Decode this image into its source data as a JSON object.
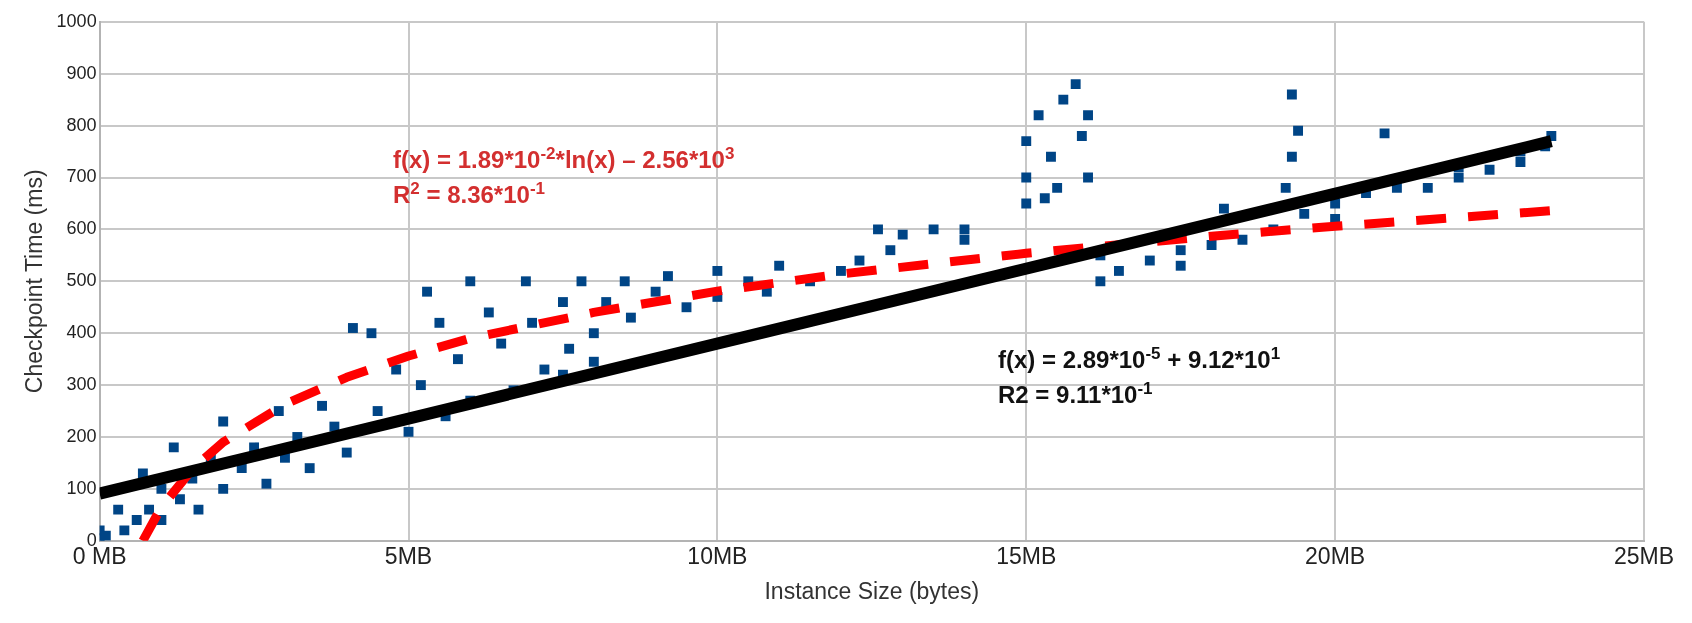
{
  "chart_data": {
    "type": "scatter",
    "xlabel": "Instance Size (bytes)",
    "ylabel": "Checkpoint Time (ms)",
    "xlim": [
      0,
      25
    ],
    "xticks": [
      {
        "value": 0,
        "label": "0 MB"
      },
      {
        "value": 5,
        "label": "5MB"
      },
      {
        "value": 10,
        "label": "10MB"
      },
      {
        "value": 15,
        "label": "15MB"
      },
      {
        "value": 20,
        "label": "20MB"
      },
      {
        "value": 25,
        "label": "25MB"
      }
    ],
    "ylim": [
      0,
      1000
    ],
    "yticks": [
      0,
      100,
      200,
      300,
      400,
      500,
      600,
      700,
      800,
      900,
      1000
    ],
    "grid": true,
    "marker": "square",
    "series": [
      {
        "color": "#004586",
        "x": [
          0,
          0,
          0.1,
          0.3,
          0.4,
          0.6,
          0.7,
          0.8,
          1,
          1,
          1.2,
          1.3,
          1.5,
          1.6,
          1.8,
          2,
          2,
          2.3,
          2.5,
          2.7,
          2.9,
          3,
          3.2,
          3.4,
          3.6,
          3.8,
          4,
          4.1,
          4.4,
          4.5,
          4.8,
          5,
          5.2,
          5.3,
          5.5,
          5.6,
          5.8,
          6,
          6,
          6.3,
          6.5,
          6.7,
          6.9,
          7,
          7.2,
          7.5,
          7.5,
          7.6,
          7.8,
          8,
          8,
          8.2,
          8.5,
          8.6,
          9,
          9.2,
          9.5,
          10,
          10,
          10.5,
          10.8,
          11,
          11.5,
          12,
          12.3,
          12.6,
          12.8,
          13,
          13.5,
          14,
          14,
          15,
          15,
          15,
          15.2,
          15.3,
          15.4,
          15.5,
          15.6,
          15.8,
          15.9,
          16,
          16,
          16.2,
          16.2,
          16.5,
          17,
          17.5,
          17.5,
          18,
          18.2,
          18.5,
          19,
          19.2,
          19.3,
          19.4,
          19.3,
          19.5,
          20,
          20,
          20.5,
          20.8,
          21,
          21.5,
          22,
          22,
          22.5,
          23,
          23,
          23.4,
          23.5
        ],
        "values": [
          5,
          20,
          10,
          60,
          20,
          40,
          130,
          60,
          100,
          40,
          180,
          80,
          120,
          60,
          160,
          100,
          230,
          140,
          180,
          110,
          250,
          160,
          200,
          140,
          260,
          220,
          170,
          410,
          400,
          250,
          330,
          210,
          300,
          480,
          420,
          240,
          350,
          500,
          270,
          440,
          380,
          290,
          500,
          420,
          330,
          460,
          320,
          370,
          500,
          400,
          345,
          460,
          500,
          430,
          480,
          510,
          450,
          470,
          520,
          500,
          480,
          530,
          500,
          520,
          540,
          600,
          560,
          590,
          600,
          600,
          580,
          650,
          700,
          770,
          820,
          660,
          740,
          680,
          850,
          880,
          780,
          700,
          820,
          500,
          550,
          520,
          540,
          560,
          530,
          570,
          640,
          580,
          600,
          680,
          860,
          790,
          740,
          630,
          650,
          620,
          670,
          785,
          680,
          680,
          720,
          700,
          715,
          750,
          730,
          760,
          780
        ]
      },
      {
        "type": "line",
        "color": "#000000",
        "line_style": "solid",
        "marker": "none",
        "x": [
          0,
          23.5
        ],
        "values": [
          91,
          770
        ]
      },
      {
        "type": "line",
        "color": "#ff0000",
        "line_style": "dashed",
        "marker": "none",
        "x": [
          0.7,
          1,
          1.5,
          2,
          3,
          4,
          5,
          6,
          8,
          10,
          12,
          15,
          18,
          20,
          23.5
        ],
        "values": [
          0,
          65,
          138,
          190,
          263,
          315,
          356,
          390,
          440,
          481,
          514,
          554,
          587,
          606,
          636
        ]
      }
    ],
    "annotations": [
      "f(x) = 1.89*10$^{-2}$*ln(x) – 2.56*10$^{3}$",
      "R$^{2}$ = 8.36*10$^{-1}$",
      "f(x) = 2.89*10$^{-5}$ + 9.12*10$^{1}$",
      "R2 = 9.11*10$^{-1}$"
    ]
  }
}
